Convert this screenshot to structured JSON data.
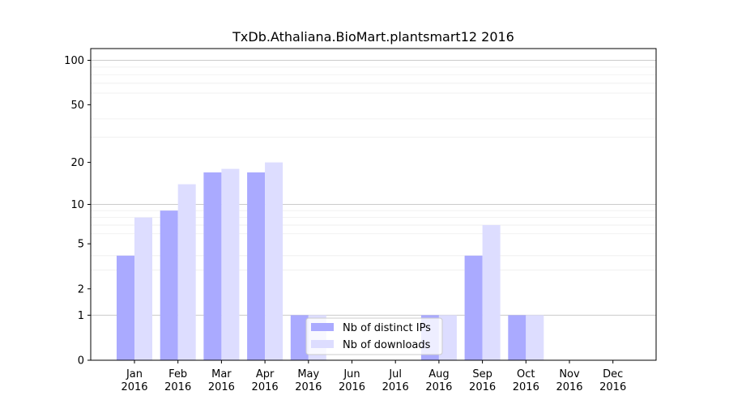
{
  "chart_data": {
    "type": "bar",
    "title": "TxDb.Athaliana.BioMart.plantsmart12 2016",
    "xlabel": "",
    "ylabel": "",
    "y_scale": "log1p",
    "ylim": [
      0,
      120
    ],
    "y_ticks": [
      0,
      1,
      2,
      5,
      10,
      20,
      50,
      100
    ],
    "grid": "horizontal",
    "legend_position": "bottom-center",
    "categories": [
      "Jan\n2016",
      "Feb\n2016",
      "Mar\n2016",
      "Apr\n2016",
      "May\n2016",
      "Jun\n2016",
      "Jul\n2016",
      "Aug\n2016",
      "Sep\n2016",
      "Oct\n2016",
      "Nov\n2016",
      "Dec\n2016"
    ],
    "series": [
      {
        "name": "Nb of distinct IPs",
        "color": "#aaaaff",
        "values": [
          4,
          9,
          17,
          17,
          1,
          0,
          0,
          1,
          4,
          1,
          0,
          0
        ]
      },
      {
        "name": "Nb of downloads",
        "color": "#ddddff",
        "values": [
          8,
          14,
          18,
          20,
          1,
          0,
          0,
          1,
          7,
          1,
          0,
          0
        ]
      }
    ]
  }
}
